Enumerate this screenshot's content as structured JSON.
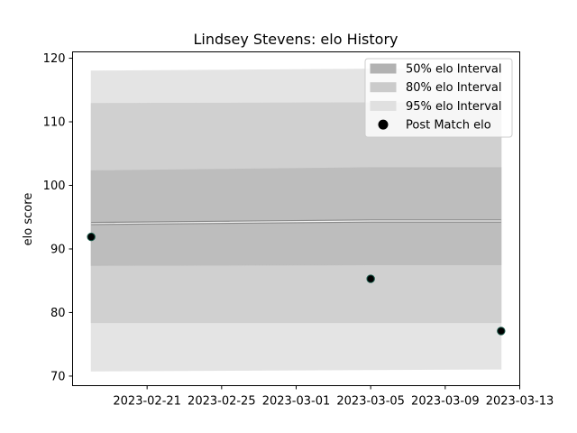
{
  "chart_data": {
    "type": "line",
    "title": "Lindsey Stevens: elo History",
    "xlabel": "",
    "ylabel": "elo score",
    "x_dates": [
      "2023-02-18",
      "2023-03-05",
      "2023-03-12"
    ],
    "xlim": [
      "2023-02-17",
      "2023-03-13"
    ],
    "ylim": [
      68.5,
      121
    ],
    "x_ticks": [
      "2023-02-21",
      "2023-02-25",
      "2023-03-01",
      "2023-03-05",
      "2023-03-09",
      "2023-03-13"
    ],
    "y_ticks": [
      70,
      80,
      90,
      100,
      110,
      120
    ],
    "grid": false,
    "legend_position": "top-right",
    "mean": [
      94.0,
      94.4,
      94.4
    ],
    "intervals": [
      {
        "name": "95% elo Interval",
        "lower": [
          70.8,
          71.0,
          71.1
        ],
        "upper": [
          118.0,
          118.3,
          118.4
        ],
        "color": "#e4e4e4"
      },
      {
        "name": "80% elo Interval",
        "lower": [
          78.4,
          78.4,
          78.4
        ],
        "upper": [
          112.9,
          113.0,
          113.0
        ],
        "color": "#d0d0d0"
      },
      {
        "name": "50% elo Interval",
        "lower": [
          87.4,
          87.5,
          87.5
        ],
        "upper": [
          102.3,
          102.8,
          102.8
        ],
        "color": "#bdbdbd"
      }
    ],
    "points": {
      "name": "Post Match elo",
      "values": [
        91.9,
        85.3,
        77.1
      ],
      "color": "#000000",
      "edge_color": "#1a5a4a"
    },
    "legend": [
      {
        "label": "50% elo Interval",
        "swatch": "#b2b2b2"
      },
      {
        "label": "80% elo Interval",
        "swatch": "#cbcbcb"
      },
      {
        "label": "95% elo Interval",
        "swatch": "#e0e0e0"
      },
      {
        "label": "Post Match elo",
        "swatch": "#000000"
      }
    ]
  }
}
